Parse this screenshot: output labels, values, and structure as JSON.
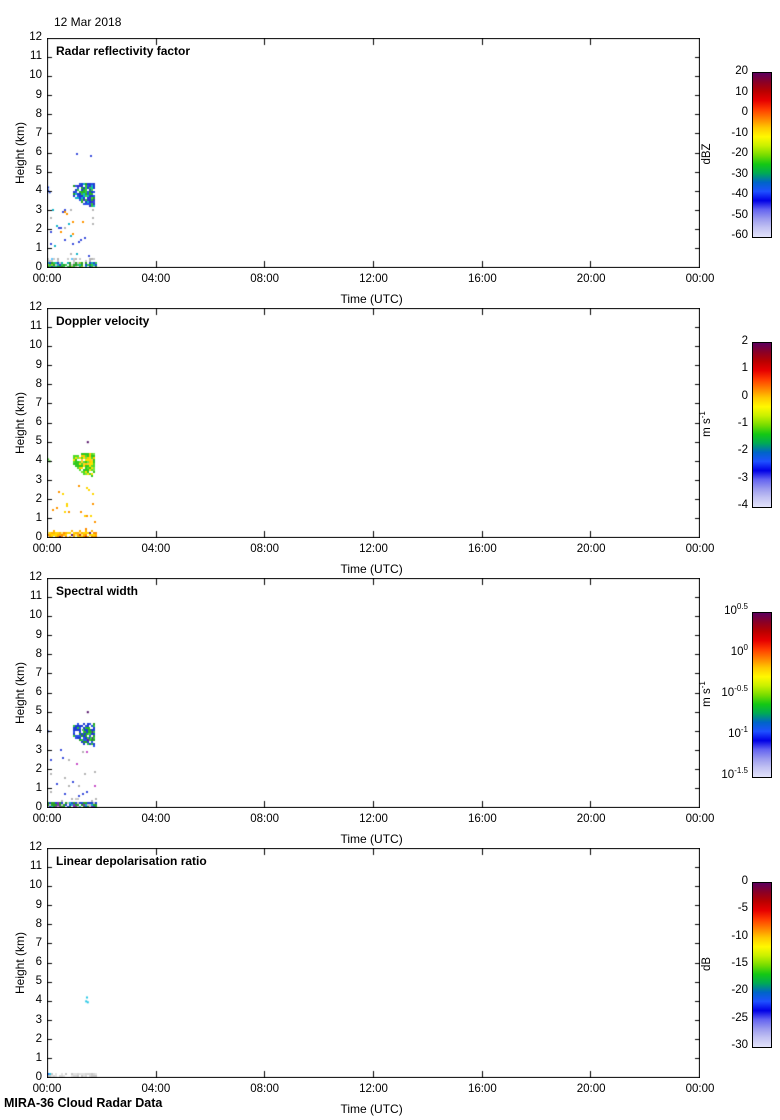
{
  "header": {
    "date": "12 Mar 2018"
  },
  "footer": {
    "label": "MIRA-36 Cloud Radar Data"
  },
  "time_axis": {
    "label": "Time (UTC)",
    "ticks": [
      "00:00",
      "04:00",
      "08:00",
      "12:00",
      "16:00",
      "20:00",
      "00:00"
    ],
    "range_hours": [
      0,
      24
    ]
  },
  "height_axis": {
    "label": "Height (km)",
    "ticks": [
      "0",
      "1",
      "2",
      "3",
      "4",
      "5",
      "6",
      "7",
      "8",
      "9",
      "10",
      "11",
      "12"
    ],
    "range_km": [
      0,
      12
    ]
  },
  "colormap": [
    "#5e005e",
    "#8a0025",
    "#b80000",
    "#e60000",
    "#ff3c00",
    "#ff8200",
    "#ffc800",
    "#fff800",
    "#c8f000",
    "#78dc00",
    "#14c814",
    "#00aa55",
    "#0064c8",
    "#1e50ff",
    "#0000e6",
    "#6464f0",
    "#9b9bee",
    "#c3c3f2",
    "#e2e2fa"
  ],
  "chart_data": {
    "type": "heatmap",
    "x_unit": "hours UTC",
    "y_unit": "km",
    "grid": false,
    "event_summary": "Shallow cloud layer 00:55-01:45 UTC between 3.2 and 4.6 km; surface/boundary-layer echo 0-0.35 km from 00:00-01:45 UTC; sparse specks below 3 km; rest of day echo-free",
    "panels": [
      {
        "title": "Radar reflectivity factor",
        "colorbar": {
          "unit": "dBZ",
          "ticks": [
            "20",
            "10",
            "0",
            "-10",
            "-20",
            "-30",
            "-40",
            "-50",
            "-60"
          ],
          "range": [
            20,
            -60
          ]
        },
        "estimated_values": {
          "cloud_dBZ": [
            -40,
            -20
          ],
          "surface_dBZ": [
            -50,
            -25
          ]
        },
        "features": [
          {
            "kind": "cloud",
            "poly": [
              [
                0.96,
                4.35
              ],
              [
                1.25,
                4.55
              ],
              [
                1.76,
                4.45
              ],
              [
                1.76,
                3.2
              ],
              [
                1.35,
                3.35
              ],
              [
                0.96,
                3.8
              ]
            ],
            "density": 0.82,
            "colors": [
              [
                "#1e3cd2",
                5
              ],
              [
                "#2850e6",
                4
              ],
              [
                "#3c32c8",
                2
              ],
              [
                "#28a028",
                2
              ],
              [
                "#32c83c",
                2
              ],
              [
                "#14b4c8",
                1
              ]
            ]
          },
          {
            "kind": "cloud",
            "poly": [
              [
                1.1,
                4.3
              ],
              [
                1.62,
                4.35
              ],
              [
                1.66,
                3.55
              ],
              [
                1.25,
                3.75
              ]
            ],
            "density": 0.5,
            "colors": [
              [
                "#28b428",
                5
              ],
              [
                "#46d23c",
                3
              ],
              [
                "#1e3cd2",
                2
              ],
              [
                "#14c8a0",
                1
              ]
            ]
          },
          {
            "kind": "layer",
            "t": [
              0,
              1.78
            ],
            "h": [
              0,
              0.32
            ],
            "density": 0.85,
            "colors": [
              [
                "#28a028",
                3
              ],
              [
                "#32c850",
                3
              ],
              [
                "#14b4b4",
                2
              ],
              [
                "#1e46d2",
                2
              ],
              [
                "#96d228",
                1
              ],
              [
                "#c8c8c8",
                1
              ]
            ]
          },
          {
            "kind": "layer",
            "t": [
              0,
              1.78
            ],
            "h": [
              0.3,
              0.5
            ],
            "density": 0.22,
            "colors": [
              [
                "#c8c8c8",
                4
              ],
              [
                "#b4b4b4",
                2
              ],
              [
                "#64c8ff",
                1
              ]
            ]
          },
          {
            "kind": "scatter",
            "t": [
              0.05,
              1.8
            ],
            "h": [
              0.5,
              3.1
            ],
            "density": 0.035,
            "colors": [
              [
                "#3c50dc",
                3
              ],
              [
                "#14b4c8",
                2
              ],
              [
                "#b4b4b4",
                2
              ],
              [
                "#ff9600",
                1
              ]
            ]
          },
          {
            "kind": "scatter",
            "t": [
              1.0,
              1.7
            ],
            "h": [
              4.8,
              6.0
            ],
            "density": 0.05,
            "colors": [
              [
                "#3c50dc",
                3
              ],
              [
                "#140a96",
                1
              ]
            ]
          },
          {
            "kind": "dots",
            "points": [
              [
                0.04,
                4.05
              ],
              [
                0.1,
                3.95
              ],
              [
                0.04,
                4.2
              ]
            ],
            "color": "#2850e6"
          }
        ]
      },
      {
        "title": "Doppler velocity",
        "colorbar": {
          "unit": "m s^{-1}",
          "ticks": [
            "2",
            "1",
            "0",
            "-1",
            "-2",
            "-3",
            "-4"
          ],
          "range": [
            2,
            -4
          ]
        },
        "estimated_values": {
          "cloud_velocity_ms": [
            -1.0,
            0.2
          ],
          "surface_velocity_ms": [
            -0.3,
            0.8
          ]
        },
        "features": [
          {
            "kind": "cloud",
            "poly": [
              [
                0.96,
                4.35
              ],
              [
                1.25,
                4.55
              ],
              [
                1.76,
                4.45
              ],
              [
                1.76,
                3.2
              ],
              [
                1.35,
                3.35
              ],
              [
                0.96,
                3.8
              ]
            ],
            "density": 0.82,
            "colors": [
              [
                "#32c81e",
                5
              ],
              [
                "#50dc28",
                4
              ],
              [
                "#78e63c",
                2
              ],
              [
                "#ffe100",
                2
              ],
              [
                "#ffc800",
                1
              ]
            ]
          },
          {
            "kind": "cloud",
            "poly": [
              [
                1.1,
                4.3
              ],
              [
                1.62,
                4.35
              ],
              [
                1.66,
                3.55
              ],
              [
                1.25,
                3.75
              ]
            ],
            "density": 0.45,
            "colors": [
              [
                "#ffe100",
                4
              ],
              [
                "#ffc832",
                3
              ],
              [
                "#64dc28",
                2
              ]
            ]
          },
          {
            "kind": "layer",
            "t": [
              0,
              1.78
            ],
            "h": [
              0,
              0.32
            ],
            "density": 0.85,
            "colors": [
              [
                "#ffd700",
                4
              ],
              [
                "#ffb400",
                3
              ],
              [
                "#ff8c00",
                2
              ],
              [
                "#ffe96e",
                1
              ],
              [
                "#641e64",
                0.3
              ],
              [
                "#c83c14",
                0.3
              ]
            ]
          },
          {
            "kind": "layer",
            "t": [
              0,
              1.78
            ],
            "h": [
              0.3,
              0.5
            ],
            "density": 0.15,
            "colors": [
              [
                "#ffb400",
                3
              ],
              [
                "#ff8c00",
                1
              ]
            ]
          },
          {
            "kind": "scatter",
            "t": [
              0.05,
              1.8
            ],
            "h": [
              0.5,
              3.1
            ],
            "density": 0.03,
            "colors": [
              [
                "#ffd700",
                4
              ],
              [
                "#ff9600",
                2
              ]
            ]
          },
          {
            "kind": "dots",
            "points": [
              [
                1.5,
                5.0
              ]
            ],
            "color": "#500a64"
          },
          {
            "kind": "dots",
            "points": [
              [
                0.04,
                4.1
              ],
              [
                0.1,
                4.0
              ]
            ],
            "color": "#46c828"
          }
        ]
      },
      {
        "title": "Spectral width",
        "colorbar": {
          "unit": "m s^{-1}",
          "ticks": [
            "10^{0.5}",
            "10^{0}",
            "10^{-0.5}",
            "10^{-1}",
            "10^{-1.5}"
          ],
          "range_log10": [
            0.5,
            -1.5
          ]
        },
        "estimated_values": {
          "cloud_width_ms": [
            0.05,
            0.3
          ]
        },
        "features": [
          {
            "kind": "cloud",
            "poly": [
              [
                0.96,
                4.35
              ],
              [
                1.25,
                4.55
              ],
              [
                1.76,
                4.45
              ],
              [
                1.76,
                3.2
              ],
              [
                1.35,
                3.35
              ],
              [
                0.96,
                3.8
              ]
            ],
            "density": 0.82,
            "colors": [
              [
                "#1e3cd2",
                5
              ],
              [
                "#2850e6",
                3
              ],
              [
                "#28a028",
                2
              ],
              [
                "#32c83c",
                2
              ],
              [
                "#6414a0",
                0.5
              ]
            ]
          },
          {
            "kind": "cloud",
            "poly": [
              [
                1.15,
                4.3
              ],
              [
                1.6,
                4.35
              ],
              [
                1.62,
                3.7
              ],
              [
                1.3,
                3.8
              ]
            ],
            "density": 0.5,
            "colors": [
              [
                "#28b428",
                5
              ],
              [
                "#46d23c",
                3
              ],
              [
                "#1e3cd2",
                1
              ]
            ]
          },
          {
            "kind": "layer",
            "t": [
              0,
              1.78
            ],
            "h": [
              0,
              0.32
            ],
            "density": 0.85,
            "colors": [
              [
                "#1e46d2",
                3
              ],
              [
                "#28a028",
                3
              ],
              [
                "#8228b4",
                1
              ],
              [
                "#14b4c8",
                1
              ],
              [
                "#e63c14",
                0.4
              ],
              [
                "#c8c8c8",
                1
              ]
            ]
          },
          {
            "kind": "layer",
            "t": [
              0,
              1.78
            ],
            "h": [
              0.3,
              0.5
            ],
            "density": 0.15,
            "colors": [
              [
                "#c8c8c8",
                3
              ],
              [
                "#b4b4b4",
                1
              ]
            ]
          },
          {
            "kind": "scatter",
            "t": [
              0.05,
              1.8
            ],
            "h": [
              0.5,
              3.1
            ],
            "density": 0.03,
            "colors": [
              [
                "#b4b4b4",
                3
              ],
              [
                "#3c50dc",
                2
              ],
              [
                "#c850c8",
                0.5
              ]
            ]
          },
          {
            "kind": "dots",
            "points": [
              [
                1.5,
                5.0
              ]
            ],
            "color": "#500a64"
          },
          {
            "kind": "dots",
            "points": [
              [
                0.04,
                4.0
              ]
            ],
            "color": "#2850e6"
          }
        ]
      },
      {
        "title": "Linear depolarisation ratio",
        "colorbar": {
          "unit": "dB",
          "ticks": [
            "0",
            "-5",
            "-10",
            "-15",
            "-20",
            "-25",
            "-30"
          ],
          "range": [
            0,
            -30
          ]
        },
        "estimated_values": {
          "surface_ldr_dB": [
            -30,
            -25
          ],
          "cloud_dots_ldr_dB": [
            -22,
            -18
          ]
        },
        "features": [
          {
            "kind": "layer",
            "t": [
              0,
              1.78
            ],
            "h": [
              0,
              0.28
            ],
            "density": 0.75,
            "colors": [
              [
                "#d7d7d7",
                6
              ],
              [
                "#c8c8c8",
                3
              ],
              [
                "#e3e3e3",
                3
              ],
              [
                "#ff9628",
                0.4
              ],
              [
                "#2864ff",
                0.4
              ],
              [
                "#28c8e6",
                0.3
              ]
            ]
          },
          {
            "kind": "dots",
            "points": [
              [
                1.47,
                4.2
              ],
              [
                1.5,
                3.95
              ],
              [
                1.44,
                4.0
              ]
            ],
            "color": "#28c8e6"
          }
        ]
      }
    ]
  }
}
